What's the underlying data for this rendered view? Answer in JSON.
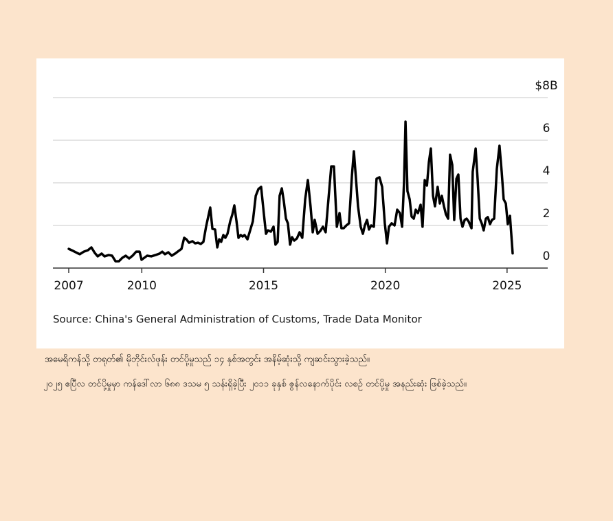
{
  "chart_data": {
    "type": "line",
    "source": "Source: China's General Administration of Customs, Trade Data Monitor",
    "x": [
      2007.0,
      2007.17,
      2007.34,
      2007.45,
      2007.62,
      2007.79,
      2007.93,
      2008.07,
      2008.19,
      2008.35,
      2008.47,
      2008.64,
      2008.78,
      2008.92,
      2009.06,
      2009.2,
      2009.34,
      2009.48,
      2009.62,
      2009.77,
      2009.91,
      2009.99,
      2010.1,
      2010.22,
      2010.39,
      2010.56,
      2010.73,
      2010.84,
      2010.95,
      2011.09,
      2011.23,
      2011.37,
      2011.52,
      2011.63,
      2011.74,
      2011.83,
      2011.94,
      2012.08,
      2012.19,
      2012.31,
      2012.42,
      2012.53,
      2012.64,
      2012.73,
      2012.81,
      2012.9,
      2013.01,
      2013.1,
      2013.18,
      2013.26,
      2013.35,
      2013.43,
      2013.52,
      2013.63,
      2013.72,
      2013.8,
      2013.89,
      2013.97,
      2014.06,
      2014.14,
      2014.22,
      2014.34,
      2014.45,
      2014.56,
      2014.68,
      2014.79,
      2014.9,
      2015.01,
      2015.1,
      2015.18,
      2015.3,
      2015.41,
      2015.49,
      2015.58,
      2015.66,
      2015.75,
      2015.83,
      2015.92,
      2016.0,
      2016.09,
      2016.17,
      2016.26,
      2016.37,
      2016.48,
      2016.59,
      2016.71,
      2016.82,
      2016.93,
      2017.02,
      2017.1,
      2017.22,
      2017.33,
      2017.44,
      2017.55,
      2017.67,
      2017.78,
      2017.89,
      2018.01,
      2018.12,
      2018.2,
      2018.29,
      2018.4,
      2018.51,
      2018.63,
      2018.71,
      2018.8,
      2018.88,
      2018.99,
      2019.08,
      2019.16,
      2019.25,
      2019.33,
      2019.42,
      2019.53,
      2019.64,
      2019.76,
      2019.87,
      2019.98,
      2020.07,
      2020.15,
      2020.26,
      2020.38,
      2020.49,
      2020.6,
      2020.69,
      2020.77,
      2020.83,
      2020.91,
      2021.0,
      2021.08,
      2021.17,
      2021.25,
      2021.34,
      2021.45,
      2021.53,
      2021.62,
      2021.71,
      2021.79,
      2021.87,
      2021.96,
      2022.04,
      2022.15,
      2022.24,
      2022.32,
      2022.41,
      2022.49,
      2022.58,
      2022.66,
      2022.75,
      2022.83,
      2022.92,
      2023.0,
      2023.09,
      2023.17,
      2023.26,
      2023.34,
      2023.42,
      2023.54,
      2023.59,
      2023.71,
      2023.79,
      2023.88,
      2023.96,
      2024.04,
      2024.13,
      2024.21,
      2024.3,
      2024.38,
      2024.47,
      2024.58,
      2024.69,
      2024.78,
      2024.86,
      2024.95,
      2025.03,
      2025.12,
      2025.23
    ],
    "values": [
      0.9,
      0.81,
      0.71,
      0.65,
      0.77,
      0.84,
      0.97,
      0.71,
      0.55,
      0.68,
      0.55,
      0.61,
      0.58,
      0.32,
      0.32,
      0.48,
      0.58,
      0.45,
      0.58,
      0.77,
      0.77,
      0.39,
      0.48,
      0.58,
      0.55,
      0.61,
      0.68,
      0.77,
      0.65,
      0.74,
      0.58,
      0.68,
      0.81,
      0.9,
      1.42,
      1.35,
      1.19,
      1.26,
      1.16,
      1.19,
      1.13,
      1.23,
      1.94,
      2.42,
      2.84,
      1.84,
      1.81,
      0.97,
      1.35,
      1.23,
      1.55,
      1.42,
      1.61,
      2.19,
      2.52,
      2.94,
      2.19,
      1.42,
      1.55,
      1.48,
      1.55,
      1.35,
      1.77,
      2.19,
      3.39,
      3.71,
      3.81,
      2.58,
      1.61,
      1.77,
      1.71,
      1.94,
      1.1,
      1.23,
      3.39,
      3.74,
      3.16,
      2.32,
      2.1,
      1.1,
      1.45,
      1.29,
      1.39,
      1.68,
      1.42,
      3.23,
      4.13,
      2.9,
      1.68,
      2.26,
      1.61,
      1.74,
      1.94,
      1.68,
      3.29,
      4.77,
      4.77,
      1.94,
      2.58,
      1.87,
      1.87,
      2.0,
      2.1,
      4.35,
      5.48,
      4.13,
      2.9,
      1.94,
      1.61,
      2.0,
      2.26,
      1.81,
      2.0,
      1.94,
      4.19,
      4.26,
      3.81,
      2.1,
      1.16,
      1.94,
      2.1,
      2.0,
      2.74,
      2.58,
      1.94,
      4.03,
      6.87,
      3.61,
      3.23,
      2.42,
      2.32,
      2.74,
      2.58,
      2.97,
      1.94,
      4.13,
      3.87,
      4.97,
      5.61,
      3.39,
      2.9,
      3.81,
      3.03,
      3.39,
      2.9,
      2.52,
      2.32,
      5.32,
      4.84,
      2.26,
      4.19,
      4.39,
      2.32,
      1.94,
      2.26,
      2.32,
      2.19,
      1.87,
      4.52,
      5.61,
      4.19,
      2.32,
      2.1,
      1.77,
      2.32,
      2.39,
      2.06,
      2.26,
      2.32,
      4.65,
      5.74,
      4.52,
      3.23,
      3.03,
      2.06,
      2.45,
      0.69
    ],
    "color": "#000000",
    "xlim": [
      2006.35,
      2026.67
    ],
    "xticks": [
      2007,
      2010,
      2015,
      2020,
      2025
    ],
    "ylim": [
      0,
      8
    ],
    "yticks": [
      0,
      2,
      4,
      6,
      {
        "value": 8,
        "label": "$8B"
      }
    ],
    "grid": true
  },
  "captions": [
    "အမေရိကန်သို့ တရုတ်၏ မိုဘိုင်းလ်ဖုန်း တင်ပို့မှုသည် ၁၄ နှစ်အတွင်း အနိမ့်ဆုံးသို့ ကျဆင်းသွားခဲ့သည်။",
    "၂၀၂၅ ဧပြီလ တင်ပို့မှုမှာ ကန်ဒေါ်လာ ၆၈၈ ဒသမ ၅ သန်းရှိခဲ့ပြီး ၂၀၁၁ ခုနှစ် ဇွန်လနောက်ပိုင်း လစဉ် တင်ပို့မှု အနည်းဆုံး ဖြစ်ခဲ့သည်။"
  ]
}
